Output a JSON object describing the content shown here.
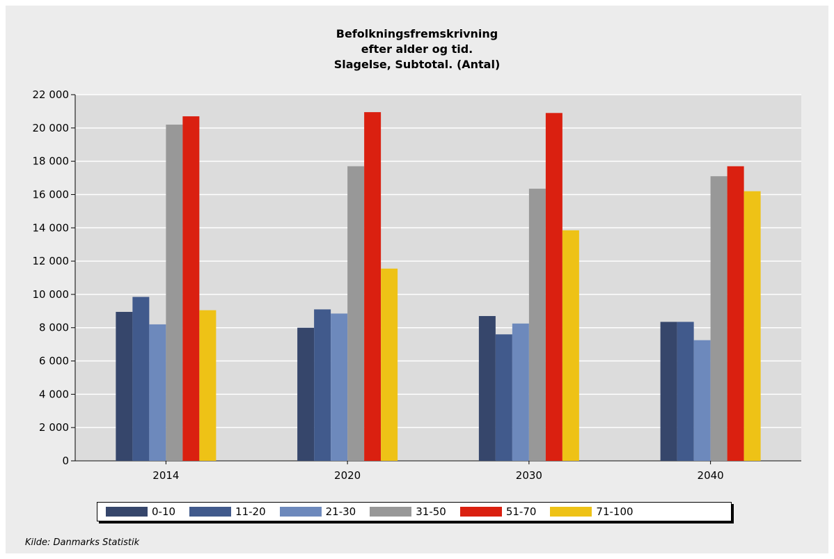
{
  "chart_data": {
    "type": "bar",
    "title_lines": [
      "Befolkningsfremskrivning",
      "efter alder og tid.",
      "Slagelse, Subtotal. (Antal)"
    ],
    "categories": [
      "2014",
      "2020",
      "2030",
      "2040"
    ],
    "series": [
      {
        "name": "0-10",
        "color": "#36466b",
        "values": [
          8950,
          8000,
          8700,
          8350
        ]
      },
      {
        "name": "11-20",
        "color": "#415a8c",
        "values": [
          9850,
          9100,
          7600,
          8350
        ]
      },
      {
        "name": "21-30",
        "color": "#6d89bc",
        "values": [
          8200,
          8850,
          8250,
          7250
        ]
      },
      {
        "name": "31-50",
        "color": "#989898",
        "values": [
          20200,
          17700,
          16350,
          17100
        ]
      },
      {
        "name": "51-70",
        "color": "#da2010",
        "values": [
          20700,
          20950,
          20900,
          17700
        ]
      },
      {
        "name": "71-100",
        "color": "#eec216",
        "values": [
          9050,
          11550,
          13850,
          16200
        ]
      }
    ],
    "yticks": [
      "0",
      "2 000",
      "4 000",
      "6 000",
      "8 000",
      "10 000",
      "12 000",
      "14 000",
      "16 000",
      "18 000",
      "20 000",
      "22 000"
    ],
    "ylim": [
      0,
      22000
    ],
    "grid": true,
    "legend_position": "bottom",
    "source": "Kilde: Danmarks Statistik"
  }
}
